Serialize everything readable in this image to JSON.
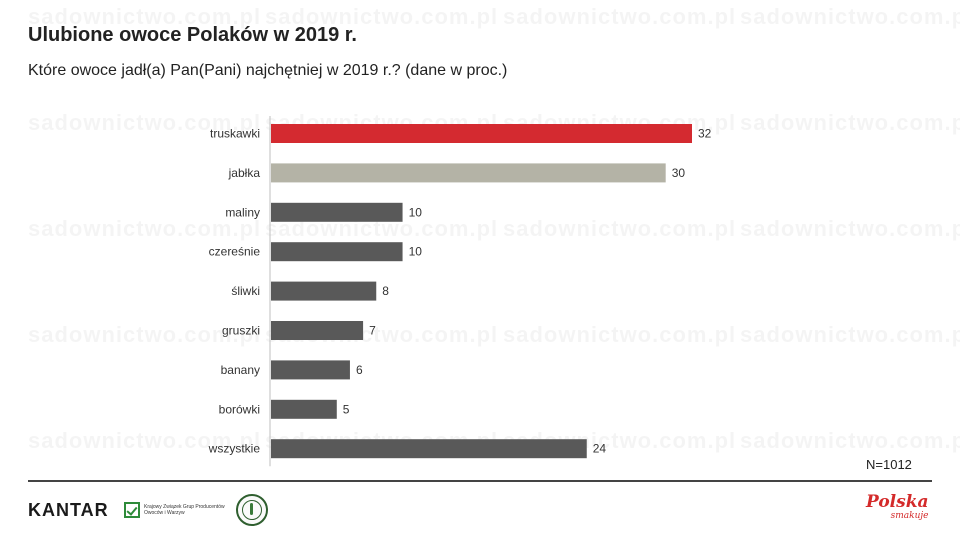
{
  "header": {
    "title": "Ulubione owoce Polaków w 2019 r.",
    "subtitle": "Które owoce jadł(a) Pan(Pani) najchętniej w 2019 r.? (dane w proc.)"
  },
  "chart_data": {
    "type": "bar",
    "orientation": "horizontal",
    "title": "Ulubione owoce Polaków w 2019 r.",
    "subtitle": "Które owoce jadł(a) Pan(Pani) najchętniej w 2019 r.? (dane w proc.)",
    "categories": [
      "truskawki",
      "jabłka",
      "maliny",
      "czereśnie",
      "śliwki",
      "gruszki",
      "banany",
      "borówki",
      "wszystkie"
    ],
    "values": [
      32,
      30,
      10,
      10,
      8,
      7,
      6,
      5,
      24
    ],
    "bar_colors": [
      "#d42a30",
      "#b4b3a6",
      "#595959",
      "#595959",
      "#595959",
      "#595959",
      "#595959",
      "#595959",
      "#595959"
    ],
    "xlim": [
      0,
      32
    ],
    "grid": false,
    "legend": "none",
    "xlabel": "",
    "ylabel": ""
  },
  "note": {
    "sample": "N=1012"
  },
  "footer": {
    "kantar": "KANTAR",
    "kzgpow_text": "Krajowy Związek Grup Producentów Owoców i Warzyw",
    "polska": "Polska",
    "smakuje": "smakuje"
  },
  "watermark": "sadownictwo.com.pl",
  "colors": {
    "accent_red": "#d42a30",
    "accent_gray": "#b4b3a6",
    "bar_dark": "#595959",
    "axis": "#bfbfbf"
  }
}
